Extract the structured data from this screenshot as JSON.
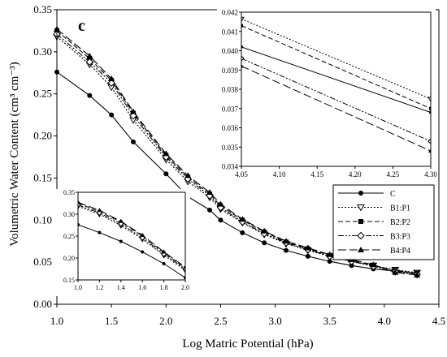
{
  "chart_data": {
    "type": "line",
    "panel_label": "c",
    "xlabel": "Log Matric Potential (hPa)",
    "ylabel": "Volumetric Water Content (cm³ cm⁻³)",
    "xlim": [
      1.0,
      4.5
    ],
    "ylim": [
      0.0,
      0.35
    ],
    "xticks": [
      "1.0",
      "1.5",
      "2.0",
      "2.5",
      "3.0",
      "3.5",
      "4.0",
      "4.5"
    ],
    "yticks": [
      "0.00",
      "0.05",
      "0.10",
      "0.15",
      "0.20",
      "0.25",
      "0.30",
      "0.35"
    ],
    "grid": false,
    "legend_position": "right",
    "series": [
      {
        "name": "C",
        "style": "solid",
        "marker": "filled-circle",
        "x": [
          1.0,
          1.3,
          1.5,
          1.7,
          2.0,
          2.2,
          2.4,
          2.5,
          2.7,
          2.9,
          3.1,
          3.3,
          3.5,
          3.7,
          3.9,
          4.1,
          4.3
        ],
        "y": [
          0.276,
          0.248,
          0.225,
          0.193,
          0.155,
          0.128,
          0.112,
          0.1,
          0.085,
          0.073,
          0.064,
          0.057,
          0.051,
          0.046,
          0.042,
          0.0394,
          0.0368
        ]
      },
      {
        "name": "B1:P1",
        "style": "dotted",
        "marker": "open-triangle-down",
        "x": [
          1.0,
          1.3,
          1.5,
          1.7,
          2.0,
          2.2,
          2.4,
          2.5,
          2.7,
          2.9,
          3.1,
          3.3,
          3.5,
          3.7,
          3.9,
          4.1,
          4.3
        ],
        "y": [
          0.318,
          0.285,
          0.258,
          0.219,
          0.172,
          0.146,
          0.127,
          0.113,
          0.097,
          0.083,
          0.072,
          0.064,
          0.057,
          0.051,
          0.046,
          0.041,
          0.0375
        ]
      },
      {
        "name": "B2:P2",
        "style": "dashed",
        "marker": "filled-square",
        "x": [
          1.0,
          1.3,
          1.5,
          1.7,
          2.0,
          2.2,
          2.4,
          2.5,
          2.7,
          2.9,
          3.1,
          3.3,
          3.5,
          3.7,
          3.9,
          4.1,
          4.3
        ],
        "y": [
          0.325,
          0.292,
          0.266,
          0.227,
          0.177,
          0.151,
          0.131,
          0.117,
          0.1,
          0.086,
          0.074,
          0.066,
          0.058,
          0.052,
          0.046,
          0.0403,
          0.037
        ]
      },
      {
        "name": "B3:P3",
        "style": "dash-dot",
        "marker": "open-diamond",
        "x": [
          1.0,
          1.3,
          1.5,
          1.7,
          2.0,
          2.2,
          2.4,
          2.5,
          2.7,
          2.9,
          3.1,
          3.3,
          3.5,
          3.7,
          3.9,
          4.1,
          4.3
        ],
        "y": [
          0.321,
          0.288,
          0.263,
          0.224,
          0.175,
          0.149,
          0.129,
          0.115,
          0.098,
          0.084,
          0.073,
          0.065,
          0.057,
          0.051,
          0.045,
          0.0385,
          0.0353
        ]
      },
      {
        "name": "B4:P4",
        "style": "long-dash",
        "marker": "filled-triangle",
        "x": [
          1.0,
          1.3,
          1.5,
          1.7,
          2.0,
          2.2,
          2.4,
          2.5,
          2.7,
          2.9,
          3.1,
          3.3,
          3.5,
          3.7,
          3.9,
          4.1,
          4.3
        ],
        "y": [
          0.327,
          0.295,
          0.268,
          0.229,
          0.179,
          0.153,
          0.133,
          0.119,
          0.101,
          0.087,
          0.075,
          0.067,
          0.059,
          0.053,
          0.047,
          0.0378,
          0.0348
        ]
      }
    ],
    "inset_top_right": {
      "xlim": [
        4.05,
        4.3
      ],
      "ylim": [
        0.034,
        0.042
      ],
      "xticks": [
        "4.05",
        "4.10",
        "4.15",
        "4.20",
        "4.25",
        "4.30"
      ],
      "yticks": [
        "0.034",
        "0.035",
        "0.036",
        "0.037",
        "0.038",
        "0.039",
        "0.040",
        "0.041",
        "0.042"
      ],
      "series": [
        {
          "x": [
            4.05,
            4.3
          ],
          "y": [
            0.0402,
            0.0368
          ]
        },
        {
          "x": [
            4.05,
            4.3
          ],
          "y": [
            0.04165,
            0.0375
          ]
        },
        {
          "x": [
            4.05,
            4.3
          ],
          "y": [
            0.0413,
            0.037
          ]
        },
        {
          "x": [
            4.05,
            4.3
          ],
          "y": [
            0.0396,
            0.0353
          ]
        },
        {
          "x": [
            4.05,
            4.3
          ],
          "y": [
            0.0392,
            0.0348
          ]
        }
      ]
    },
    "inset_bottom_left": {
      "xlim": [
        1.0,
        2.0
      ],
      "ylim": [
        0.15,
        0.35
      ],
      "xticks": [
        "1.0",
        "1.2",
        "1.4",
        "1.6",
        "1.8",
        "2.0"
      ],
      "yticks": [
        "0.15",
        "0.20",
        "0.25",
        "0.30",
        "0.35"
      ],
      "series": [
        {
          "x": [
            1.0,
            1.2,
            1.4,
            1.6,
            1.8,
            2.0
          ],
          "y": [
            0.276,
            0.258,
            0.238,
            0.214,
            0.187,
            0.155
          ]
        },
        {
          "x": [
            1.0,
            1.2,
            1.4,
            1.6,
            1.8,
            2.0
          ],
          "y": [
            0.318,
            0.3,
            0.274,
            0.243,
            0.206,
            0.172
          ]
        },
        {
          "x": [
            1.0,
            1.2,
            1.4,
            1.6,
            1.8,
            2.0
          ],
          "y": [
            0.325,
            0.306,
            0.282,
            0.25,
            0.212,
            0.177
          ]
        },
        {
          "x": [
            1.0,
            1.2,
            1.4,
            1.6,
            1.8,
            2.0
          ],
          "y": [
            0.321,
            0.303,
            0.278,
            0.246,
            0.209,
            0.175
          ]
        },
        {
          "x": [
            1.0,
            1.2,
            1.4,
            1.6,
            1.8,
            2.0
          ],
          "y": [
            0.327,
            0.309,
            0.284,
            0.252,
            0.214,
            0.179
          ]
        }
      ]
    }
  }
}
